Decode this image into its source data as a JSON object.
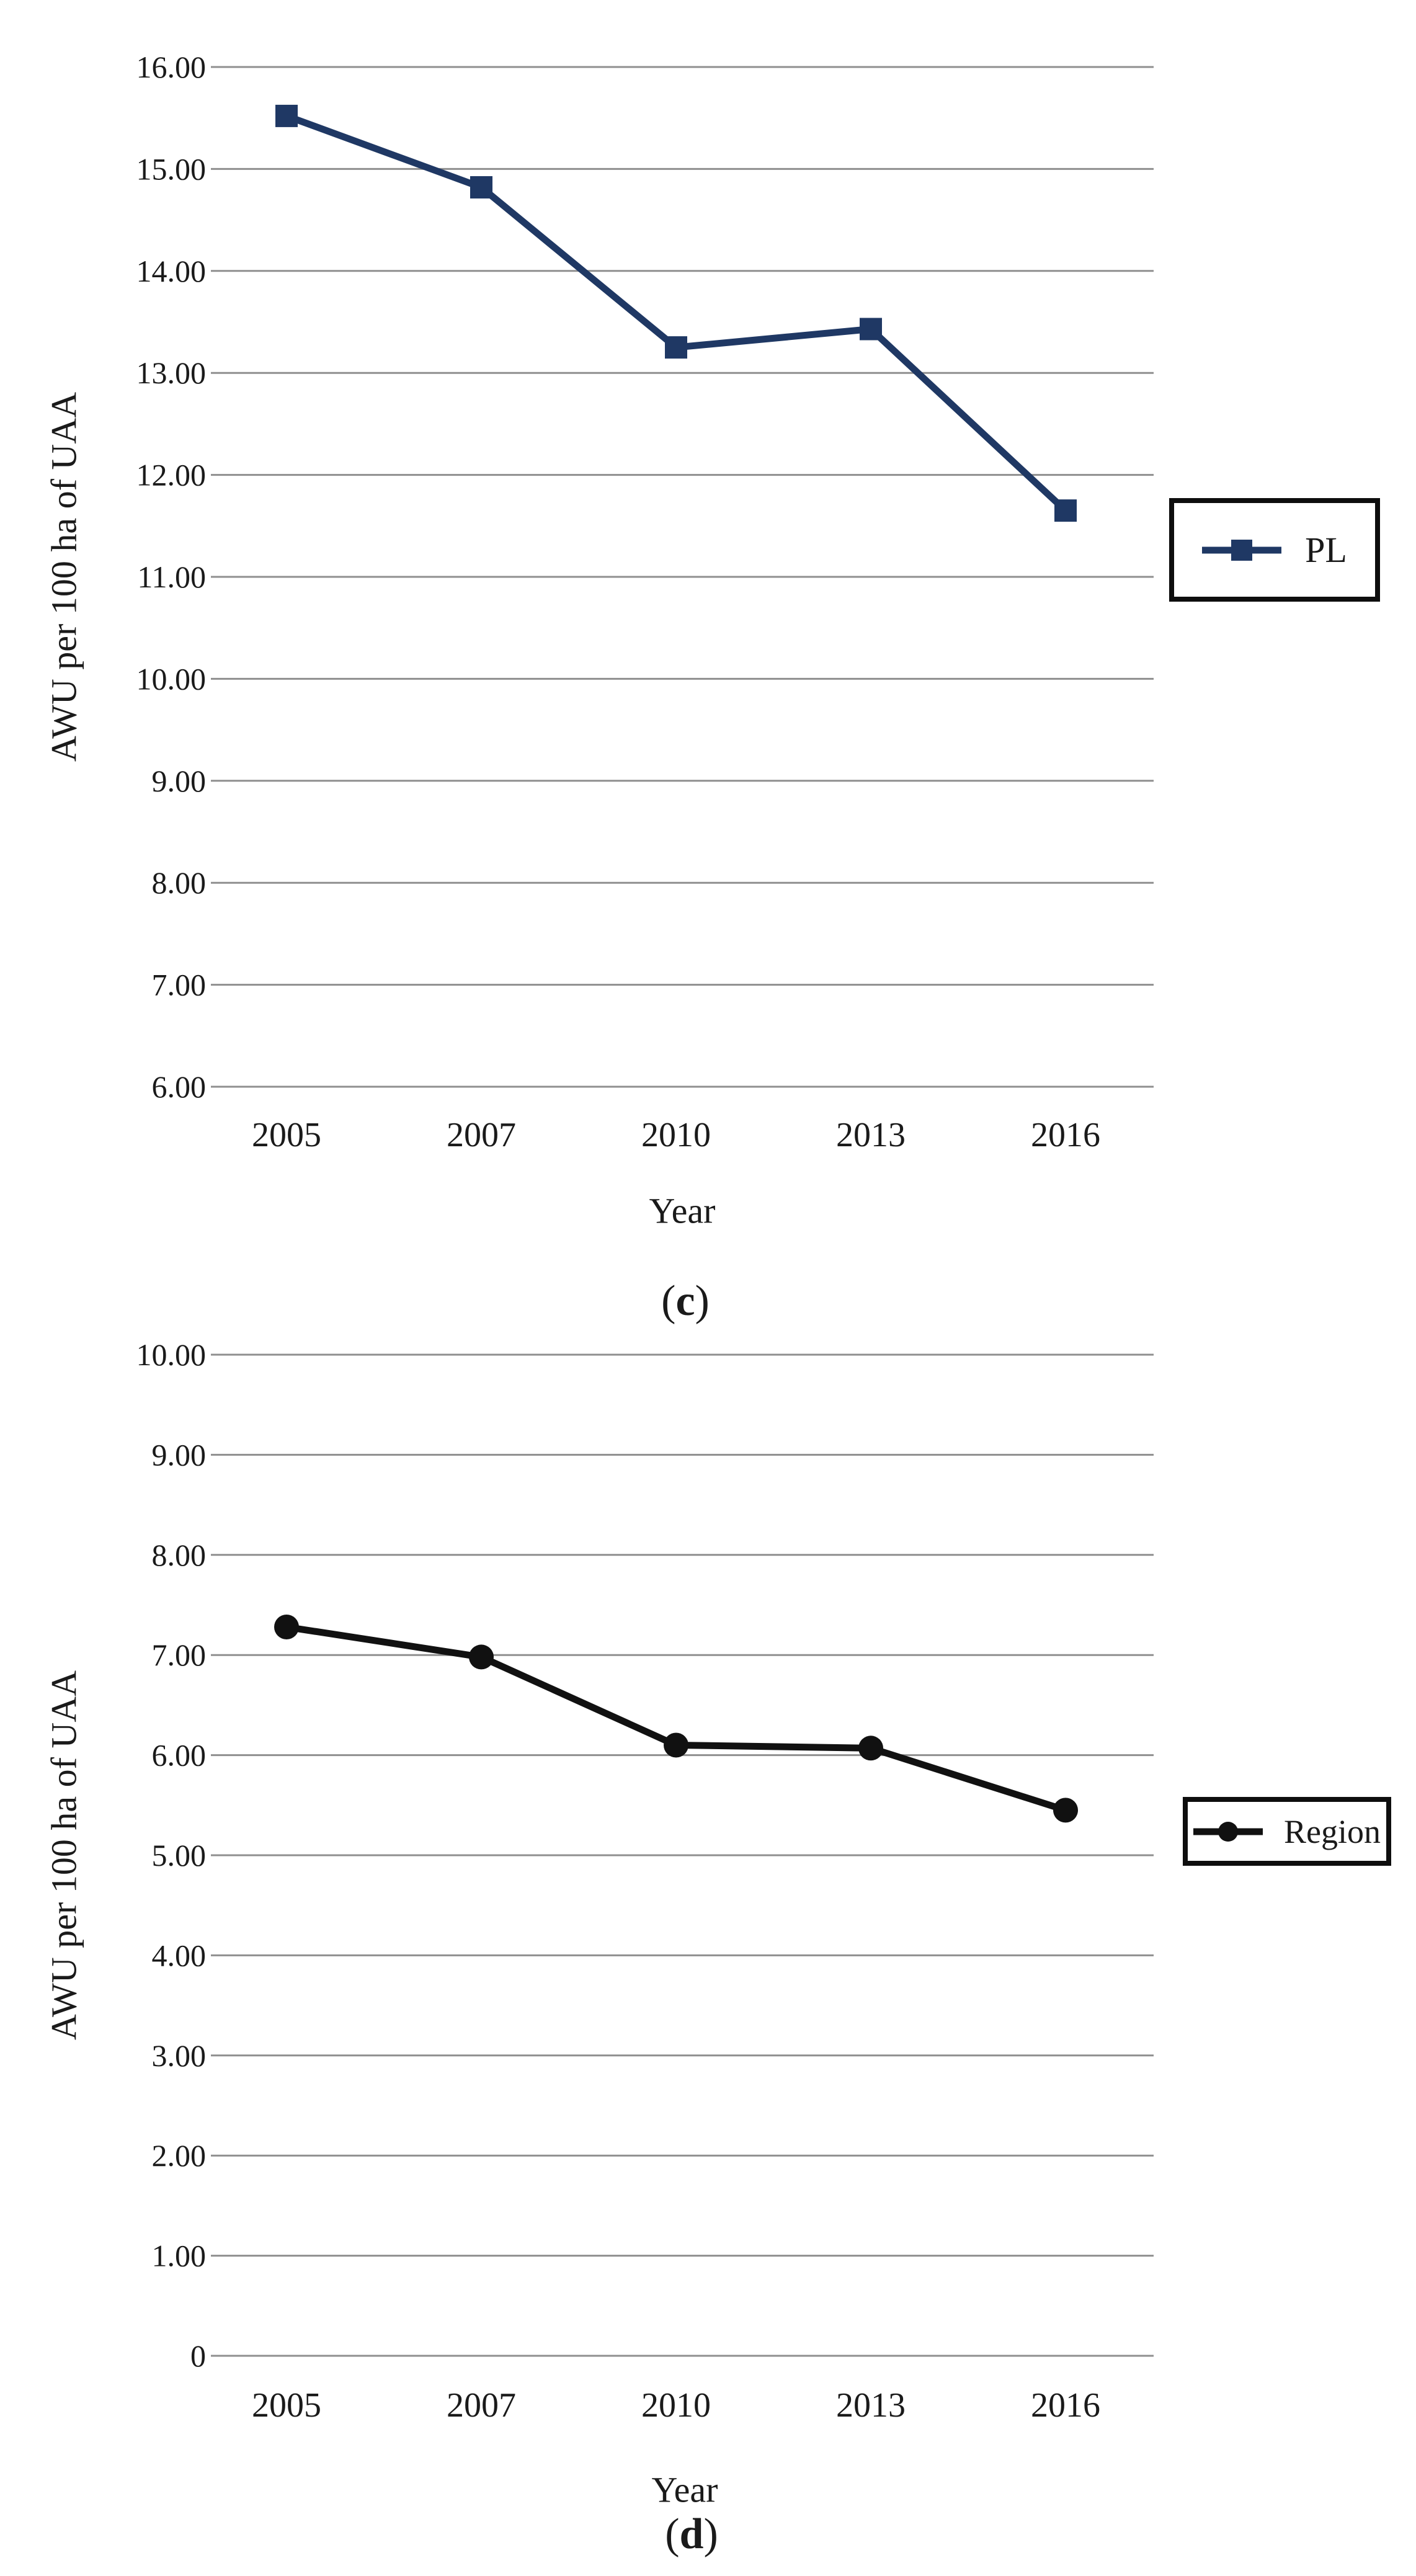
{
  "page": {
    "background": "#ffffff",
    "text_color": "#1a1a1a",
    "gridline_color": "#8f8f8f"
  },
  "chart_data": [
    {
      "panel": "c",
      "type": "line",
      "ylabel": "AWU per 100 ha of UAA",
      "xlabel": "Year",
      "caption": {
        "open": "(",
        "letter": "c",
        "close": ")"
      },
      "legend": {
        "label": "PL",
        "position": "right"
      },
      "categories": [
        "2005",
        "2007",
        "2010",
        "2013",
        "2016"
      ],
      "series": [
        {
          "name": "PL",
          "color": "#1F3864",
          "marker": "square",
          "values": [
            15.52,
            14.82,
            13.25,
            13.43,
            11.65
          ]
        }
      ],
      "ylim": [
        6,
        16
      ],
      "ystep": 1,
      "ytick_labels": [
        "16.00",
        "15.00",
        "14.00",
        "13.00",
        "12.00",
        "11.00",
        "10.00",
        "9.00",
        "8.00",
        "7.00",
        "6.00"
      ],
      "grid": "horizontal"
    },
    {
      "panel": "d",
      "type": "line",
      "ylabel": "AWU per 100 ha of UAA",
      "xlabel": "Year",
      "caption": {
        "open": "(",
        "letter": "d",
        "close": ")"
      },
      "legend": {
        "label": "Region",
        "position": "right"
      },
      "categories": [
        "2005",
        "2007",
        "2010",
        "2013",
        "2016"
      ],
      "series": [
        {
          "name": "Region",
          "color": "#111111",
          "marker": "circle",
          "values": [
            7.28,
            6.98,
            6.1,
            6.07,
            5.45
          ]
        }
      ],
      "ylim": [
        0,
        10
      ],
      "ystep": 1,
      "ytick_labels": [
        "10.00",
        "9.00",
        "8.00",
        "7.00",
        "6.00",
        "5.00",
        "4.00",
        "3.00",
        "2.00",
        "1.00",
        "0"
      ],
      "grid": "horizontal"
    }
  ]
}
